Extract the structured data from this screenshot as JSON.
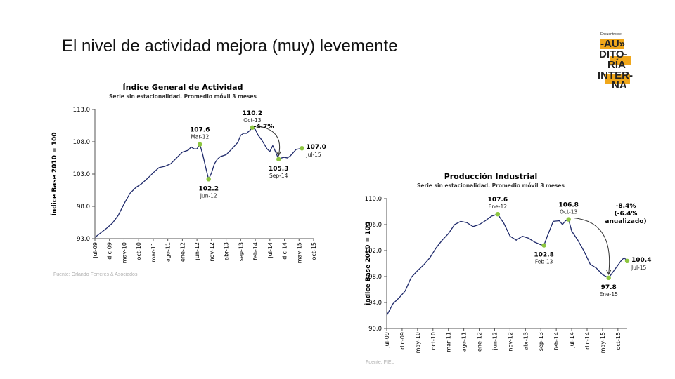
{
  "slide": {
    "title": "El nivel de actividad mejora (muy) levemente"
  },
  "logo": {
    "tagline": "Encuentro de",
    "lines": [
      "-AU»",
      "DITO-",
      "RÍA",
      "INTER-",
      "NA"
    ],
    "accent_color": "#f0a71b",
    "text_color": "#222222"
  },
  "chart_data": [
    {
      "type": "line",
      "title": "Índice General de Actividad",
      "subtitle": "Serie sin estacionalidad. Promedio móvil 3 meses",
      "ylabel": "Índice Base 2010 = 100",
      "xlabel": "",
      "ylim": [
        93.0,
        113.0
      ],
      "yticks": [
        "93.0",
        "98.0",
        "103.0",
        "108.0",
        "113.0"
      ],
      "xticks": [
        "jul-09",
        "dic-09",
        "may-10",
        "oct-10",
        "mar-11",
        "ago-11",
        "ene-12",
        "jun-12",
        "nov-12",
        "abr-13",
        "sep-13",
        "feb-14",
        "jul-14",
        "dic-14",
        "may-15",
        "oct-15"
      ],
      "xrange": [
        0,
        75
      ],
      "grid": false,
      "line_color": "#1f2a6b",
      "marker_color": "#8dc63f",
      "source": "Fuente: Orlando Ferreres & Asociados",
      "series": [
        {
          "points": [
            [
              0,
              93.2
            ],
            [
              2,
              93.9
            ],
            [
              4,
              94.6
            ],
            [
              6,
              95.4
            ],
            [
              8,
              96.6
            ],
            [
              10,
              98.4
            ],
            [
              12,
              100.0
            ],
            [
              14,
              100.9
            ],
            [
              16,
              101.5
            ],
            [
              18,
              102.3
            ],
            [
              20,
              103.2
            ],
            [
              22,
              104.0
            ],
            [
              24,
              104.2
            ],
            [
              26,
              104.6
            ],
            [
              28,
              105.5
            ],
            [
              30,
              106.4
            ],
            [
              32,
              106.7
            ],
            [
              33,
              107.2
            ],
            [
              34,
              106.9
            ],
            [
              35,
              106.9
            ],
            [
              36,
              107.6
            ],
            [
              37,
              106.0
            ],
            [
              38,
              104.0
            ],
            [
              39,
              102.2
            ],
            [
              40,
              103.2
            ],
            [
              41,
              104.6
            ],
            [
              42,
              105.3
            ],
            [
              43,
              105.7
            ],
            [
              45,
              106.0
            ],
            [
              47,
              106.9
            ],
            [
              49,
              107.9
            ],
            [
              50,
              109.0
            ],
            [
              51,
              109.3
            ],
            [
              52,
              109.3
            ],
            [
              53,
              109.7
            ],
            [
              54,
              110.2
            ],
            [
              55,
              109.9
            ],
            [
              56,
              109.0
            ],
            [
              57,
              108.4
            ],
            [
              58,
              107.7
            ],
            [
              59,
              106.9
            ],
            [
              60,
              106.5
            ],
            [
              61,
              107.4
            ],
            [
              62,
              106.4
            ],
            [
              63,
              105.3
            ],
            [
              64,
              105.5
            ],
            [
              65,
              105.6
            ],
            [
              66,
              105.5
            ],
            [
              67,
              105.8
            ],
            [
              68,
              106.3
            ],
            [
              69,
              106.8
            ],
            [
              70,
              106.9
            ],
            [
              71,
              107.0
            ]
          ]
        }
      ],
      "annotations": [
        {
          "x": 36,
          "y": 107.6,
          "value": "107.6",
          "label": "Mar-12",
          "pos": "above"
        },
        {
          "x": 39,
          "y": 102.2,
          "value": "102.2",
          "label": "Jun-12",
          "pos": "below"
        },
        {
          "x": 54,
          "y": 110.2,
          "value": "110.2",
          "label": "Oct-13",
          "pos": "above"
        },
        {
          "x": 63,
          "y": 105.3,
          "value": "105.3",
          "label": "Sep-14",
          "pos": "below"
        },
        {
          "x": 71,
          "y": 107.0,
          "value": "107.0",
          "label": "Jul-15",
          "pos": "right"
        }
      ],
      "change_label": [
        "-4.7%"
      ]
    },
    {
      "type": "line",
      "title": "Producción Industrial",
      "subtitle": "Serie sin estacionalidad. Promedio móvil 3 meses",
      "ylabel": "Índice Base 2010 = 100",
      "xlabel": "",
      "ylim": [
        90.0,
        110.0
      ],
      "yticks": [
        "90.0",
        "94.0",
        "98.0",
        "102.0",
        "106.0",
        "110.0"
      ],
      "xticks": [
        "jul-09",
        "dic-09",
        "may-10",
        "oct-10",
        "mar-11",
        "ago-11",
        "ene-12",
        "jun-12",
        "nov-12",
        "abr-13",
        "sep-13",
        "feb-14",
        "jul-14",
        "dic-14",
        "may-15",
        "oct-15"
      ],
      "xrange": [
        0,
        75
      ],
      "grid": false,
      "line_color": "#1f2a6b",
      "marker_color": "#8dc63f",
      "source": "Fuente: FIEL",
      "series": [
        {
          "points": [
            [
              0,
              92.0
            ],
            [
              2,
              93.8
            ],
            [
              4,
              94.7
            ],
            [
              6,
              95.8
            ],
            [
              8,
              97.9
            ],
            [
              10,
              98.9
            ],
            [
              12,
              99.8
            ],
            [
              14,
              100.9
            ],
            [
              16,
              102.4
            ],
            [
              18,
              103.6
            ],
            [
              20,
              104.6
            ],
            [
              22,
              106.0
            ],
            [
              24,
              106.5
            ],
            [
              26,
              106.3
            ],
            [
              28,
              105.7
            ],
            [
              30,
              106.0
            ],
            [
              32,
              106.6
            ],
            [
              34,
              107.3
            ],
            [
              36,
              107.6
            ],
            [
              38,
              106.2
            ],
            [
              40,
              104.2
            ],
            [
              42,
              103.6
            ],
            [
              44,
              104.2
            ],
            [
              46,
              103.9
            ],
            [
              48,
              103.3
            ],
            [
              50,
              102.9
            ],
            [
              51,
              102.8
            ],
            [
              52,
              104.1
            ],
            [
              54,
              106.5
            ],
            [
              56,
              106.6
            ],
            [
              57,
              106.0
            ],
            [
              58,
              106.6
            ],
            [
              59,
              106.8
            ],
            [
              60,
              105.0
            ],
            [
              62,
              103.6
            ],
            [
              64,
              101.9
            ],
            [
              66,
              99.9
            ],
            [
              68,
              99.3
            ],
            [
              70,
              98.3
            ],
            [
              72,
              97.8
            ],
            [
              74,
              99.1
            ],
            [
              76,
              100.4
            ],
            [
              77,
              100.9
            ],
            [
              78,
              100.4
            ]
          ]
        }
      ],
      "annotations": [
        {
          "x": 36,
          "y": 107.6,
          "value": "107.6",
          "label": "Ene-12",
          "pos": "above"
        },
        {
          "x": 51,
          "y": 102.8,
          "value": "102.8",
          "label": "Feb-13",
          "pos": "below"
        },
        {
          "x": 59,
          "y": 106.8,
          "value": "106.8",
          "label": "Oct-13",
          "pos": "above"
        },
        {
          "x": 72,
          "y": 97.8,
          "value": "97.8",
          "label": "Ene-15",
          "pos": "below"
        },
        {
          "x": 78,
          "y": 100.4,
          "value": "100.4",
          "label": "Jul-15",
          "pos": "right"
        }
      ],
      "change_label": [
        "-8.4%",
        "(-6.4%",
        "anualizado)"
      ]
    }
  ]
}
